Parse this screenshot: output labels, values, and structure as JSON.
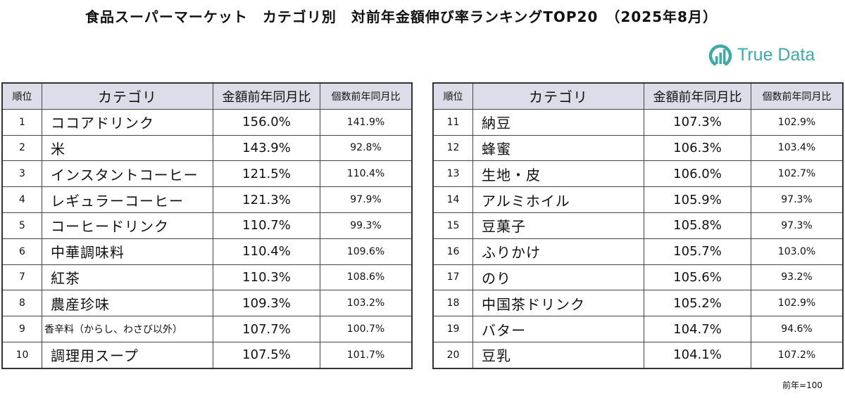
{
  "title": "食品スーパーマーケット　カテゴリ別　対前年金額伸び率ランキングTOP20　（2025年8月）",
  "logo": {
    "text": "True Data",
    "color": "#3aaba9"
  },
  "headers": [
    "順位",
    "カテゴリ",
    "金額前年同月比",
    "個数前年同月比"
  ],
  "left_rows": [
    {
      "rank": "1",
      "category": "ココアドリンク",
      "amount": "156.0%",
      "qty": "141.9%"
    },
    {
      "rank": "2",
      "category": "米",
      "amount": "143.9%",
      "qty": "92.8%"
    },
    {
      "rank": "3",
      "category": "インスタントコーヒー",
      "amount": "121.5%",
      "qty": "110.4%"
    },
    {
      "rank": "4",
      "category": "レギュラーコーヒー",
      "amount": "121.3%",
      "qty": "97.9%"
    },
    {
      "rank": "5",
      "category": "コーヒードリンク",
      "amount": "110.7%",
      "qty": "99.3%"
    },
    {
      "rank": "6",
      "category": "中華調味料",
      "amount": "110.4%",
      "qty": "109.6%"
    },
    {
      "rank": "7",
      "category": "紅茶",
      "amount": "110.3%",
      "qty": "108.6%"
    },
    {
      "rank": "8",
      "category": "農産珍味",
      "amount": "109.3%",
      "qty": "103.2%"
    },
    {
      "rank": "9",
      "category": "香辛料（からし、わさび以外）",
      "amount": "107.7%",
      "qty": "100.7%"
    },
    {
      "rank": "10",
      "category": "調理用スープ",
      "amount": "107.5%",
      "qty": "101.7%"
    }
  ],
  "right_rows": [
    {
      "rank": "11",
      "category": "納豆",
      "amount": "107.3%",
      "qty": "102.9%"
    },
    {
      "rank": "12",
      "category": "蜂蜜",
      "amount": "106.3%",
      "qty": "103.4%"
    },
    {
      "rank": "13",
      "category": "生地・皮",
      "amount": "106.0%",
      "qty": "102.7%"
    },
    {
      "rank": "14",
      "category": "アルミホイル",
      "amount": "105.9%",
      "qty": "97.3%"
    },
    {
      "rank": "15",
      "category": "豆菓子",
      "amount": "105.8%",
      "qty": "97.3%"
    },
    {
      "rank": "16",
      "category": "ふりかけ",
      "amount": "105.7%",
      "qty": "103.0%"
    },
    {
      "rank": "17",
      "category": "のり",
      "amount": "105.6%",
      "qty": "93.2%"
    },
    {
      "rank": "18",
      "category": "中国茶ドリンク",
      "amount": "105.2%",
      "qty": "102.9%"
    },
    {
      "rank": "19",
      "category": "バター",
      "amount": "104.7%",
      "qty": "94.6%"
    },
    {
      "rank": "20",
      "category": "豆乳",
      "amount": "104.1%",
      "qty": "107.2%"
    }
  ],
  "note": "前年=100"
}
